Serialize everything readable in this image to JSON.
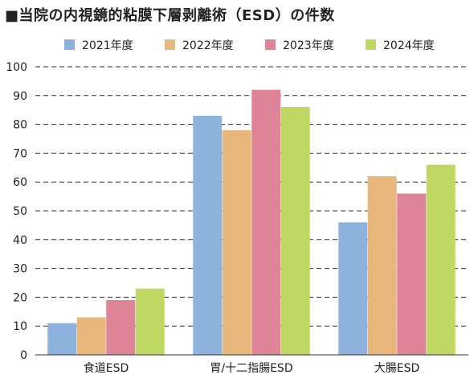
{
  "chart_data": {
    "type": "bar",
    "title": "■当院の内視鏡的粘膜下層剥離術（ESD）の件数",
    "categories": [
      "食道ESD",
      "胃/十二指腸ESD",
      "大腸ESD"
    ],
    "series": [
      {
        "name": "2021年度",
        "color": "#8db3dc",
        "values": [
          11,
          83,
          46
        ]
      },
      {
        "name": "2022年度",
        "color": "#e8b77c",
        "values": [
          13,
          78,
          62
        ]
      },
      {
        "name": "2023年度",
        "color": "#dd8497",
        "values": [
          19,
          92,
          56
        ]
      },
      {
        "name": "2024年度",
        "color": "#bfd863",
        "values": [
          23,
          86,
          66
        ]
      }
    ],
    "yticks": [
      0,
      10,
      20,
      30,
      40,
      50,
      60,
      70,
      80,
      90,
      100
    ],
    "ylim": [
      0,
      100
    ],
    "grid": true,
    "legend_position": "top"
  }
}
